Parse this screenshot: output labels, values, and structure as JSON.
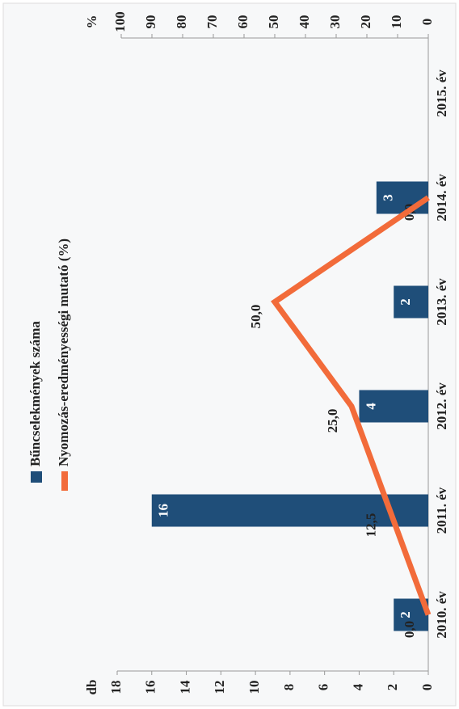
{
  "chart_data": {
    "type": "bar_line",
    "categories": [
      "2010. év",
      "2011. év",
      "2012. év",
      "2013. év",
      "2014. év",
      "2015. év"
    ],
    "y_label": "db",
    "y2_label": "%",
    "series": [
      {
        "name": "Bűncselekmények száma",
        "type": "bar",
        "color": "#1f4e79",
        "values": [
          2,
          16,
          4,
          2,
          3,
          null
        ]
      },
      {
        "name": "Nyomozás-eredményességi mutató (%)",
        "type": "line",
        "axis": "y2",
        "color": "#f26b3a",
        "values": [
          0,
          12.5,
          25,
          50,
          0,
          null
        ],
        "value_labels": [
          "0,0",
          "12,5",
          "25,0",
          "50,0",
          "0,0",
          null
        ]
      }
    ],
    "ylim": [
      0,
      18
    ],
    "yticks": [
      0,
      2,
      4,
      6,
      8,
      10,
      12,
      14,
      16,
      18
    ],
    "y2lim": [
      0,
      100
    ],
    "y2ticks": [
      0,
      10,
      20,
      30,
      40,
      50,
      60,
      70,
      80,
      90,
      100
    ],
    "grid": false,
    "legend": "top-left"
  }
}
